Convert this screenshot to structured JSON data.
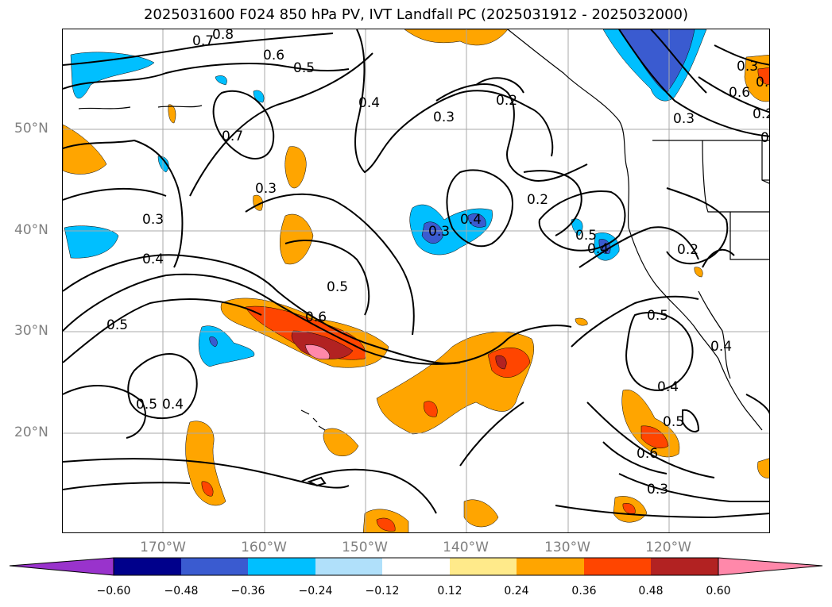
{
  "title": "2025031600 F024 850 hPa PV, IVT Landfall PC (2025031912 - 2025032000)",
  "lat_labels": [
    "50°N",
    "40°N",
    "30°N",
    "20°N"
  ],
  "lon_labels": [
    "170°W",
    "160°W",
    "150°W",
    "140°W",
    "130°W",
    "120°W"
  ],
  "contour_labels": [
    "0.8",
    "0.7",
    "0.6",
    "0.5",
    "0.4",
    "0.2",
    "0.3",
    "0.3",
    "0.2",
    "0.7",
    "0.3",
    "0.3",
    "0.4",
    "0.3",
    "0.4",
    "0.2",
    "0.5",
    "0.4",
    "0.2",
    "0.5",
    "0.6",
    "0.5",
    "0.5",
    "0.4",
    "0.4",
    "0.5",
    "0.4",
    "0.5",
    "0.6",
    "0.3",
    "0.5",
    "0.6",
    "0.3",
    "0.4"
  ],
  "colorbar": {
    "ticks": [
      "−0.60",
      "−0.48",
      "−0.36",
      "−0.24",
      "−0.12",
      "0.12",
      "0.24",
      "0.36",
      "0.48",
      "0.60"
    ],
    "colors": [
      "#9933cc",
      "#00008b",
      "#3a5bd0",
      "#00bfff",
      "#b0e0fa",
      "#ffffff",
      "#ffea8a",
      "#ffa500",
      "#ff4500",
      "#b22222",
      "#ff88aa"
    ]
  },
  "chart_data": {
    "type": "map",
    "region": "North-East Pacific",
    "lat_range": [
      10,
      60
    ],
    "lon_range": [
      -180,
      -110
    ],
    "gridlines": true,
    "contour_field": "850 hPa PV",
    "shaded_field": "IVT Landfall PC",
    "colorbar_levels": [
      -0.6,
      -0.48,
      -0.36,
      -0.24,
      -0.12,
      0.12,
      0.24,
      0.36,
      0.48,
      0.6
    ]
  }
}
